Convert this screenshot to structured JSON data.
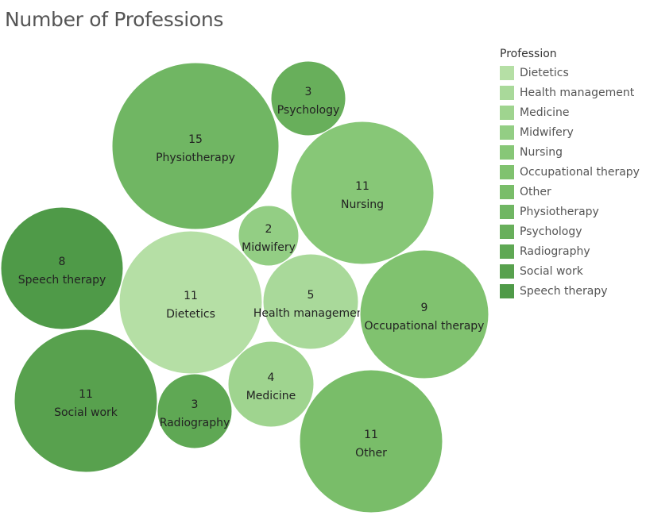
{
  "chart_data": {
    "type": "bubble",
    "title": "Number of Professions",
    "legend": {
      "title": "Profession",
      "placement": "right",
      "items": [
        {
          "label": "Dietetics",
          "color": "#b5dfa5"
        },
        {
          "label": "Health management",
          "color": "#a9d99a"
        },
        {
          "label": "Medicine",
          "color": "#9fd48f"
        },
        {
          "label": "Midwifery",
          "color": "#93ce84"
        },
        {
          "label": "Nursing",
          "color": "#87c777"
        },
        {
          "label": "Occupational therapy",
          "color": "#80c26f"
        },
        {
          "label": "Other",
          "color": "#79bd69"
        },
        {
          "label": "Physiotherapy",
          "color": "#70b663"
        },
        {
          "label": "Psychology",
          "color": "#68af5b"
        },
        {
          "label": "Radiography",
          "color": "#5fa854"
        },
        {
          "label": "Social work",
          "color": "#58a14e"
        },
        {
          "label": "Speech therapy",
          "color": "#4f9a48"
        }
      ]
    },
    "bubbles": [
      {
        "label": "Physiotherapy",
        "value": "15",
        "count": 15,
        "color": "#70b663"
      },
      {
        "label": "Psychology",
        "value": "3",
        "count": 3,
        "color": "#68af5b"
      },
      {
        "label": "Nursing",
        "value": "11",
        "count": 11,
        "color": "#87c777"
      },
      {
        "label": "Midwifery",
        "value": "2",
        "count": 2,
        "color": "#93ce84"
      },
      {
        "label": "Speech therapy",
        "value": "8",
        "count": 8,
        "color": "#4f9a48"
      },
      {
        "label": "Dietetics",
        "value": "11",
        "count": 11,
        "color": "#b5dfa5"
      },
      {
        "label": "Health management",
        "value": "5",
        "count": 5,
        "color": "#a9d99a"
      },
      {
        "label": "Occupational therapy",
        "value": "9",
        "count": 9,
        "color": "#80c26f"
      },
      {
        "label": "Social work",
        "value": "11",
        "count": 11,
        "color": "#58a14e"
      },
      {
        "label": "Radiography",
        "value": "3",
        "count": 3,
        "color": "#5fa854"
      },
      {
        "label": "Medicine",
        "value": "4",
        "count": 4,
        "color": "#9fd48f"
      },
      {
        "label": "Other",
        "value": "11",
        "count": 11,
        "color": "#79bd69"
      }
    ]
  }
}
